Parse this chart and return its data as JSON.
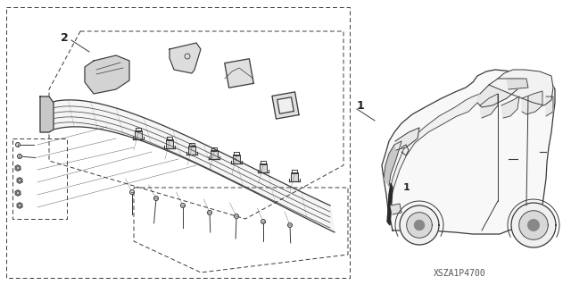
{
  "bg_color": "#ffffff",
  "line_color": "#3a3a3a",
  "label_color": "#222222",
  "watermark": "XSZA1P4700",
  "label1": "1",
  "label2": "2",
  "fig_width": 6.4,
  "fig_height": 3.19,
  "dpi": 100
}
